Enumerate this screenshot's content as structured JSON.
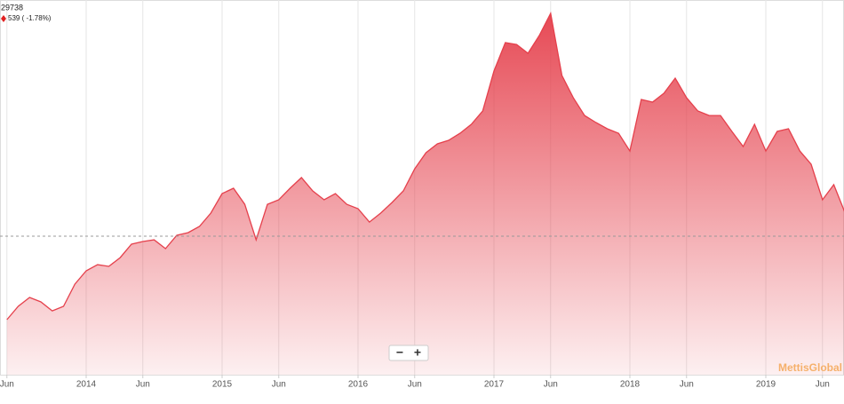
{
  "header": {
    "last": "29738",
    "change": "539 ( -1.78%)"
  },
  "watermark": "MettisGlobal",
  "zoom": {
    "out": "−",
    "in": "+"
  },
  "chart_data": {
    "type": "area",
    "color": "#e5404c",
    "grid": true,
    "ylim": [
      11270,
      54100
    ],
    "reference_line": 27100,
    "xticks": [
      {
        "value": "2013-06",
        "label": "Jun"
      },
      {
        "value": "2014-01",
        "label": "2014"
      },
      {
        "value": "2014-06",
        "label": "Jun"
      },
      {
        "value": "2015-01",
        "label": "2015"
      },
      {
        "value": "2015-06",
        "label": "Jun"
      },
      {
        "value": "2016-01",
        "label": "2016"
      },
      {
        "value": "2016-06",
        "label": "Jun"
      },
      {
        "value": "2017-01",
        "label": "2017"
      },
      {
        "value": "2017-06",
        "label": "Jun"
      },
      {
        "value": "2018-01",
        "label": "2018"
      },
      {
        "value": "2018-06",
        "label": "Jun"
      },
      {
        "value": "2019-01",
        "label": "2019"
      },
      {
        "value": "2019-06",
        "label": "Jun"
      }
    ],
    "x": [
      "2013-06",
      "2013-07",
      "2013-08",
      "2013-09",
      "2013-10",
      "2013-11",
      "2013-12",
      "2014-01",
      "2014-02",
      "2014-03",
      "2014-04",
      "2014-05",
      "2014-06",
      "2014-07",
      "2014-08",
      "2014-09",
      "2014-10",
      "2014-11",
      "2014-12",
      "2015-01",
      "2015-02",
      "2015-03",
      "2015-04",
      "2015-05",
      "2015-06",
      "2015-07",
      "2015-08",
      "2015-09",
      "2015-10",
      "2015-11",
      "2015-12",
      "2016-01",
      "2016-02",
      "2016-03",
      "2016-04",
      "2016-05",
      "2016-06",
      "2016-07",
      "2016-08",
      "2016-09",
      "2016-10",
      "2016-11",
      "2016-12",
      "2017-01",
      "2017-02",
      "2017-03",
      "2017-04",
      "2017-05",
      "2017-06",
      "2017-07",
      "2017-08",
      "2017-09",
      "2017-10",
      "2017-11",
      "2017-12",
      "2018-01",
      "2018-02",
      "2018-03",
      "2018-04",
      "2018-05",
      "2018-06",
      "2018-07",
      "2018-08",
      "2018-09",
      "2018-10",
      "2018-11",
      "2018-12",
      "2019-01",
      "2019-02",
      "2019-03",
      "2019-04",
      "2019-05",
      "2019-06",
      "2019-07",
      "2019-08"
    ],
    "values": [
      17560,
      19080,
      20100,
      19590,
      18570,
      19080,
      21620,
      23140,
      23850,
      23650,
      24660,
      26190,
      26490,
      26690,
      25680,
      27200,
      27510,
      28220,
      29740,
      31970,
      32580,
      30750,
      26690,
      30750,
      31260,
      32580,
      33800,
      32280,
      31260,
      31970,
      30750,
      30250,
      28720,
      29740,
      30960,
      32280,
      34810,
      36640,
      37660,
      38060,
      38870,
      39890,
      41410,
      45980,
      49230,
      49020,
      48010,
      50040,
      52580,
      45470,
      42930,
      40900,
      40090,
      39380,
      38870,
      36840,
      42730,
      42430,
      43440,
      45170,
      42930,
      41410,
      40900,
      40900,
      39080,
      37350,
      39890,
      36840,
      39080,
      39380,
      36840,
      35320,
      31260,
      32990,
      29738
    ]
  }
}
